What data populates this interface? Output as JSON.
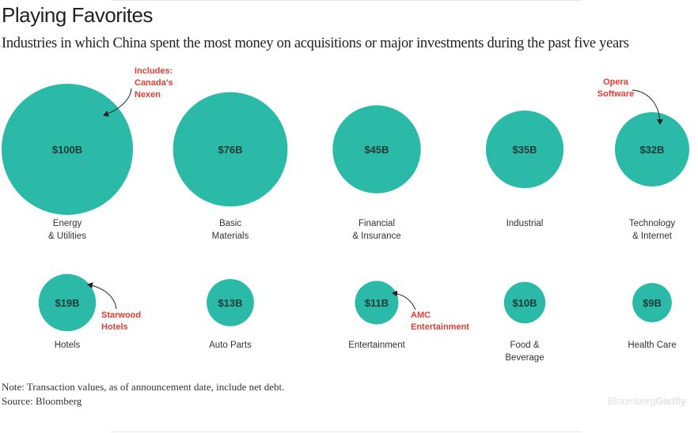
{
  "title": "Playing Favorites",
  "subtitle": "Industries in which China spent the most money on acquisitions or major investments during the past five years",
  "note": "Note: Transaction values, as of announcement date, include net debt.",
  "source": "Source: Bloomberg",
  "logo": {
    "part1": "Bloomberg",
    "part2": "Gadfly"
  },
  "colors": {
    "bubble": "#2bbaa7",
    "annotation": "#e03c31",
    "value_text": "#1f3b38",
    "label_text": "#333333"
  },
  "chart_data": {
    "type": "bubble",
    "unit": "$B",
    "categories": [
      "Energy & Utilities",
      "Basic Materials",
      "Financial & Insurance",
      "Industrial",
      "Technology & Internet",
      "Hotels",
      "Auto Parts",
      "Entertainment",
      "Food & Beverage",
      "Health Care"
    ],
    "values": [
      100,
      76,
      45,
      35,
      32,
      19,
      13,
      11,
      10,
      9
    ],
    "items": [
      {
        "label_lines": [
          "Energy",
          "& Utilities"
        ],
        "value": 100,
        "value_label": "$100B"
      },
      {
        "label_lines": [
          "Basic",
          "Materials"
        ],
        "value": 76,
        "value_label": "$76B"
      },
      {
        "label_lines": [
          "Financial",
          "& Insurance"
        ],
        "value": 45,
        "value_label": "$45B"
      },
      {
        "label_lines": [
          "Industrial"
        ],
        "value": 35,
        "value_label": "$35B"
      },
      {
        "label_lines": [
          "Technology",
          "& Internet"
        ],
        "value": 32,
        "value_label": "$32B"
      },
      {
        "label_lines": [
          "Hotels"
        ],
        "value": 19,
        "value_label": "$19B"
      },
      {
        "label_lines": [
          "Auto Parts"
        ],
        "value": 13,
        "value_label": "$13B"
      },
      {
        "label_lines": [
          "Entertainment"
        ],
        "value": 11,
        "value_label": "$11B"
      },
      {
        "label_lines": [
          "Food &",
          "Beverage"
        ],
        "value": 10,
        "value_label": "$10B"
      },
      {
        "label_lines": [
          "Health Care"
        ],
        "value": 9,
        "value_label": "$9B"
      }
    ],
    "annotations": [
      {
        "item": 0,
        "lines": [
          "Includes:",
          "Canada's",
          "Nexen"
        ]
      },
      {
        "item": 4,
        "lines": [
          "Opera",
          "Software"
        ]
      },
      {
        "item": 5,
        "lines": [
          "Starwood",
          "Hotels"
        ]
      },
      {
        "item": 7,
        "lines": [
          "AMC",
          "Entertainment"
        ]
      }
    ]
  }
}
